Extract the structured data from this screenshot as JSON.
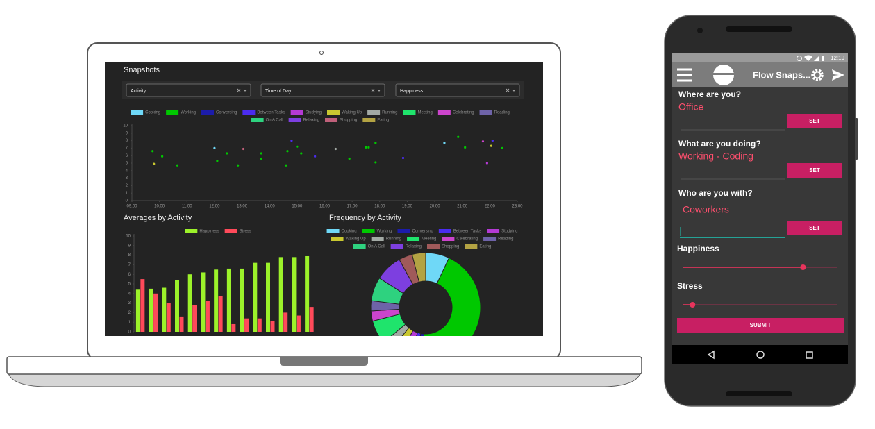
{
  "laptop": {
    "filters": [
      "Activity",
      "Time of Day",
      "Happiness"
    ]
  },
  "chart_data": [
    {
      "type": "scatter",
      "title": "Snapshots",
      "xlim": [
        9,
        23
      ],
      "xticks": [
        {
          "value": 9,
          "label": "09:00"
        },
        {
          "value": 10,
          "label": "10:00"
        },
        {
          "value": 11,
          "label": "11:00"
        },
        {
          "value": 12,
          "label": "12:00"
        },
        {
          "value": 13,
          "label": "13:00"
        },
        {
          "value": 14,
          "label": "14:00"
        },
        {
          "value": 15,
          "label": "15:00"
        },
        {
          "value": 16,
          "label": "16:00"
        },
        {
          "value": 17,
          "label": "17:00"
        },
        {
          "value": 18,
          "label": "18:00"
        },
        {
          "value": 19,
          "label": "19:00"
        },
        {
          "value": 20,
          "label": "20:00"
        },
        {
          "value": 21,
          "label": "21:00"
        },
        {
          "value": 22,
          "label": "22:00"
        },
        {
          "value": 23,
          "label": "23:00"
        }
      ],
      "ylim": [
        0,
        10
      ],
      "yticks": [
        0,
        1,
        2,
        3,
        4,
        5,
        6,
        7,
        8,
        9,
        10
      ],
      "series": [
        {
          "name": "Cooking",
          "color": "#6fd8f7",
          "x": [
            12,
            20.35
          ],
          "values": [
            7,
            7.7
          ]
        },
        {
          "name": "Working",
          "color": "#00c800",
          "x": [
            9.75,
            10.1,
            10.65,
            12.1,
            12.45,
            12.85,
            13.7,
            13.7,
            14.6,
            14.65,
            15,
            15.15,
            16.9,
            17.5,
            17.6,
            17.85,
            17.85,
            20.85,
            21.1,
            22.45
          ],
          "values": [
            6.6,
            5.9,
            4.7,
            5.3,
            6.3,
            4.7,
            6.3,
            5.6,
            4.7,
            6.6,
            7.2,
            6.3,
            5.6,
            7.1,
            7.1,
            7.7,
            5.1,
            8.5,
            7.1,
            7
          ]
        },
        {
          "name": "Conversing",
          "color": "#1c1caa",
          "x": [],
          "values": []
        },
        {
          "name": "Between Tasks",
          "color": "#4b2cf0",
          "x": [
            14.8,
            15.65,
            18.85,
            22.1
          ],
          "values": [
            8,
            5.9,
            5.7,
            8
          ]
        },
        {
          "name": "Studying",
          "color": "#b43ad4",
          "x": [
            21.9
          ],
          "values": [
            5
          ]
        },
        {
          "name": "Waking Up",
          "color": "#c9c830",
          "x": [
            9.8,
            22.05
          ],
          "values": [
            4.9,
            7.3
          ]
        },
        {
          "name": "Running",
          "color": "#a3aaa5",
          "x": [
            16.4
          ],
          "values": [
            6.9
          ]
        },
        {
          "name": "Meeting",
          "color": "#1fe46c",
          "x": [],
          "values": []
        },
        {
          "name": "Celebrating",
          "color": "#cc44cc",
          "x": [
            21.75
          ],
          "values": [
            7.9
          ]
        },
        {
          "name": "Reading",
          "color": "#6e63a8",
          "x": [],
          "values": []
        },
        {
          "name": "On A Call",
          "color": "#2ed27f",
          "x": [],
          "values": []
        },
        {
          "name": "Relaxing",
          "color": "#7d3fe0",
          "x": [],
          "values": []
        },
        {
          "name": "Shopping",
          "color": "#c0607a",
          "x": [
            13.05
          ],
          "values": [
            6.9
          ]
        },
        {
          "name": "Eating",
          "color": "#b3a343",
          "x": [],
          "values": []
        }
      ]
    },
    {
      "type": "bar",
      "title": "Averages by Activity",
      "ylim": [
        0,
        10
      ],
      "yticks": [
        0,
        1,
        2,
        3,
        4,
        5,
        6,
        7,
        8,
        9,
        10
      ],
      "series": [
        {
          "name": "Happiness",
          "color": "#9cf22a",
          "values": [
            4.4,
            4.5,
            4.6,
            5.4,
            6.0,
            6.2,
            6.5,
            6.6,
            6.6,
            7.2,
            7.2,
            7.8,
            7.8,
            7.9
          ]
        },
        {
          "name": "Stress",
          "color": "#ff4a5a",
          "values": [
            5.5,
            4.0,
            3.0,
            1.6,
            2.8,
            3.2,
            3.7,
            0.8,
            1.4,
            1.4,
            1.1,
            2.0,
            1.7,
            2.6
          ]
        }
      ]
    },
    {
      "type": "pie",
      "title": "Frequency by Activity",
      "categories": [
        "Cooking",
        "Working",
        "Conversing",
        "Between Tasks",
        "Studying",
        "Waking Up",
        "Running",
        "Meeting",
        "Celebrating",
        "Reading",
        "On A Call",
        "Relaxing",
        "Shopping",
        "Eating"
      ],
      "values": [
        7,
        44,
        2,
        2,
        3,
        3,
        3,
        7,
        3,
        3,
        7,
        8,
        4,
        4
      ],
      "colors": [
        "#6fd8f7",
        "#00c800",
        "#1c1caa",
        "#4b2cf0",
        "#b43ad4",
        "#c9c830",
        "#a3aaa5",
        "#1fe46c",
        "#cc44cc",
        "#6e63a8",
        "#2ed27f",
        "#7d3fe0",
        "#a05a5a",
        "#b3a343"
      ]
    }
  ],
  "phone": {
    "status_time": "12:19",
    "app_title": "Flow Snaps...",
    "fields": [
      {
        "question": "Where are you?",
        "answer": "Office",
        "button": "SET"
      },
      {
        "question": "What are you doing?",
        "answer": "Working - Coding",
        "button": "SET"
      },
      {
        "question": "Who are you with?",
        "answer": "Coworkers",
        "button": "SET"
      }
    ],
    "sliders": [
      {
        "label": "Happiness",
        "value": 78,
        "range": [
          0,
          100
        ]
      },
      {
        "label": "Stress",
        "value": 6,
        "range": [
          0,
          100
        ]
      }
    ],
    "submit": "SUBMIT"
  }
}
